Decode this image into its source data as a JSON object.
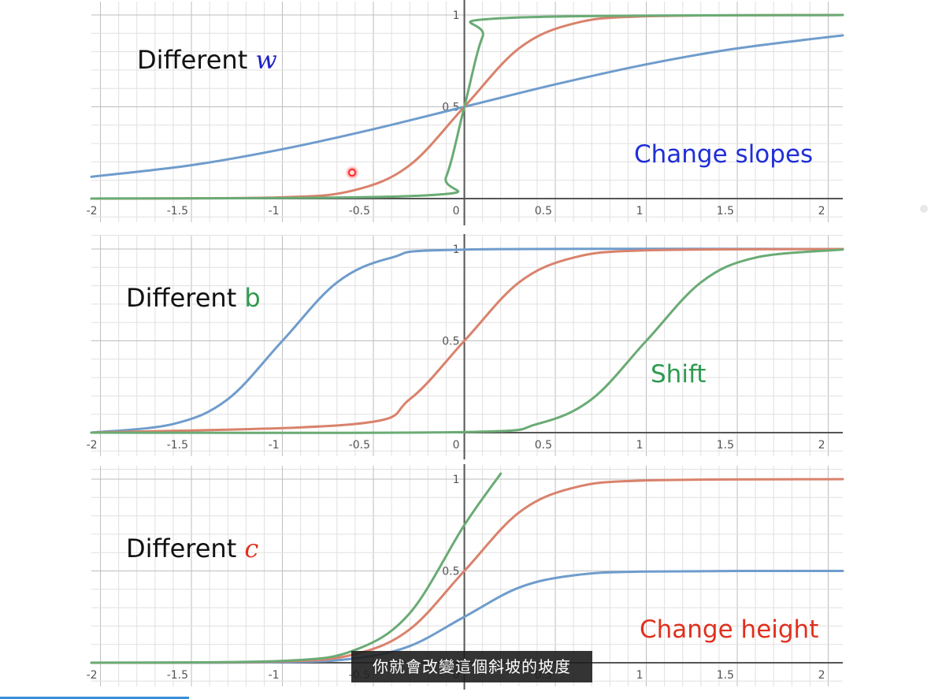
{
  "subtitle": "你就會改變這個斜坡的坡度",
  "panels": [
    {
      "title_prefix": "Different ",
      "title_var": "w",
      "annotation": "Change slopes",
      "annotation_color": "#1f2fd6"
    },
    {
      "title_prefix": "Different ",
      "title_var": "b",
      "annotation": "Shift",
      "annotation_color": "#2e9a4f"
    },
    {
      "title_prefix": "Different ",
      "title_var": "c",
      "annotation": "Change height",
      "annotation_color": "#e0301e"
    }
  ],
  "colors": {
    "blue": "#6f9ccc",
    "red": "#d9826c",
    "green": "#6aab75",
    "grid_minor": "#e0e0e0",
    "grid_major": "#bdbdbd",
    "axis": "#555555"
  },
  "chart_data": [
    {
      "type": "line",
      "x_ticks": [
        "-2",
        "-1.5",
        "-1",
        "-0.5",
        "0",
        "0.5",
        "1",
        "1.5",
        "2"
      ],
      "y_ticks": [
        "0.5",
        "1"
      ],
      "xlim": [
        -2.05,
        2.08
      ],
      "ylim": [
        0,
        1.03
      ],
      "grid": true,
      "series": [
        {
          "color": "blue",
          "x": [
            -2.05,
            -1.5,
            -1,
            -0.5,
            0,
            0.5,
            1,
            1.5,
            2.08
          ],
          "y": [
            0.119,
            0.182,
            0.269,
            0.378,
            0.5,
            0.622,
            0.731,
            0.818,
            0.889
          ]
        },
        {
          "color": "red",
          "x": [
            -2.05,
            -1,
            -0.6,
            -0.3,
            0,
            0.3,
            0.6,
            1,
            2.08
          ],
          "y": [
            0.0,
            0.007,
            0.047,
            0.182,
            0.5,
            0.818,
            0.953,
            0.993,
            1.0
          ]
        },
        {
          "color": "green",
          "x": [
            -2.05,
            -0.2,
            -0.1,
            0,
            0.1,
            0.2,
            2.08
          ],
          "y": [
            0.0,
            0.018,
            0.119,
            0.5,
            0.881,
            0.982,
            1.0
          ]
        }
      ]
    },
    {
      "type": "line",
      "x_ticks": [
        "-2",
        "-1.5",
        "-1",
        "-0.5",
        "0",
        "0.5",
        "1",
        "1.5",
        "2"
      ],
      "y_ticks": [
        "0.5",
        "1"
      ],
      "xlim": [
        -2.05,
        2.08
      ],
      "ylim": [
        0,
        1.03
      ],
      "grid": true,
      "series": [
        {
          "color": "blue",
          "x": [
            -2.05,
            -1.6,
            -1.3,
            -1,
            -0.7,
            -0.4,
            0,
            2.08
          ],
          "y": [
            0.0,
            0.047,
            0.182,
            0.5,
            0.818,
            0.953,
            0.997,
            1.0
          ]
        },
        {
          "color": "red",
          "x": [
            -2.05,
            -0.6,
            -0.3,
            0,
            0.3,
            0.6,
            1,
            2.08
          ],
          "y": [
            0.0,
            0.047,
            0.182,
            0.5,
            0.818,
            0.953,
            0.993,
            1.0
          ]
        },
        {
          "color": "green",
          "x": [
            -2.05,
            0,
            0.4,
            0.7,
            1,
            1.3,
            1.6,
            2.08
          ],
          "y": [
            0.0,
            0.003,
            0.047,
            0.182,
            0.5,
            0.818,
            0.953,
            0.997
          ]
        }
      ]
    },
    {
      "type": "line",
      "x_ticks": [
        "-2",
        "-1.5",
        "-1",
        "-0.5",
        "0",
        "0.5",
        "1",
        "1.5",
        "2"
      ],
      "y_ticks": [
        "0.5",
        "1"
      ],
      "xlim": [
        -2.05,
        2.08
      ],
      "ylim": [
        0,
        1.03
      ],
      "grid": true,
      "series": [
        {
          "color": "blue",
          "x": [
            -2.05,
            -1,
            -0.6,
            -0.3,
            0,
            0.3,
            0.6,
            1,
            2.08
          ],
          "y": [
            0.0,
            0.003,
            0.024,
            0.091,
            0.25,
            0.409,
            0.476,
            0.497,
            0.5
          ]
        },
        {
          "color": "red",
          "x": [
            -2.05,
            -1,
            -0.6,
            -0.3,
            0,
            0.3,
            0.6,
            1,
            2.08
          ],
          "y": [
            0.0,
            0.007,
            0.047,
            0.182,
            0.5,
            0.818,
            0.953,
            0.993,
            1.0
          ]
        },
        {
          "color": "green",
          "x": [
            -2.05,
            -1,
            -0.6,
            -0.3,
            0,
            0.2
          ],
          "y": [
            0.0,
            0.01,
            0.07,
            0.27,
            0.75,
            1.03
          ]
        }
      ]
    }
  ]
}
